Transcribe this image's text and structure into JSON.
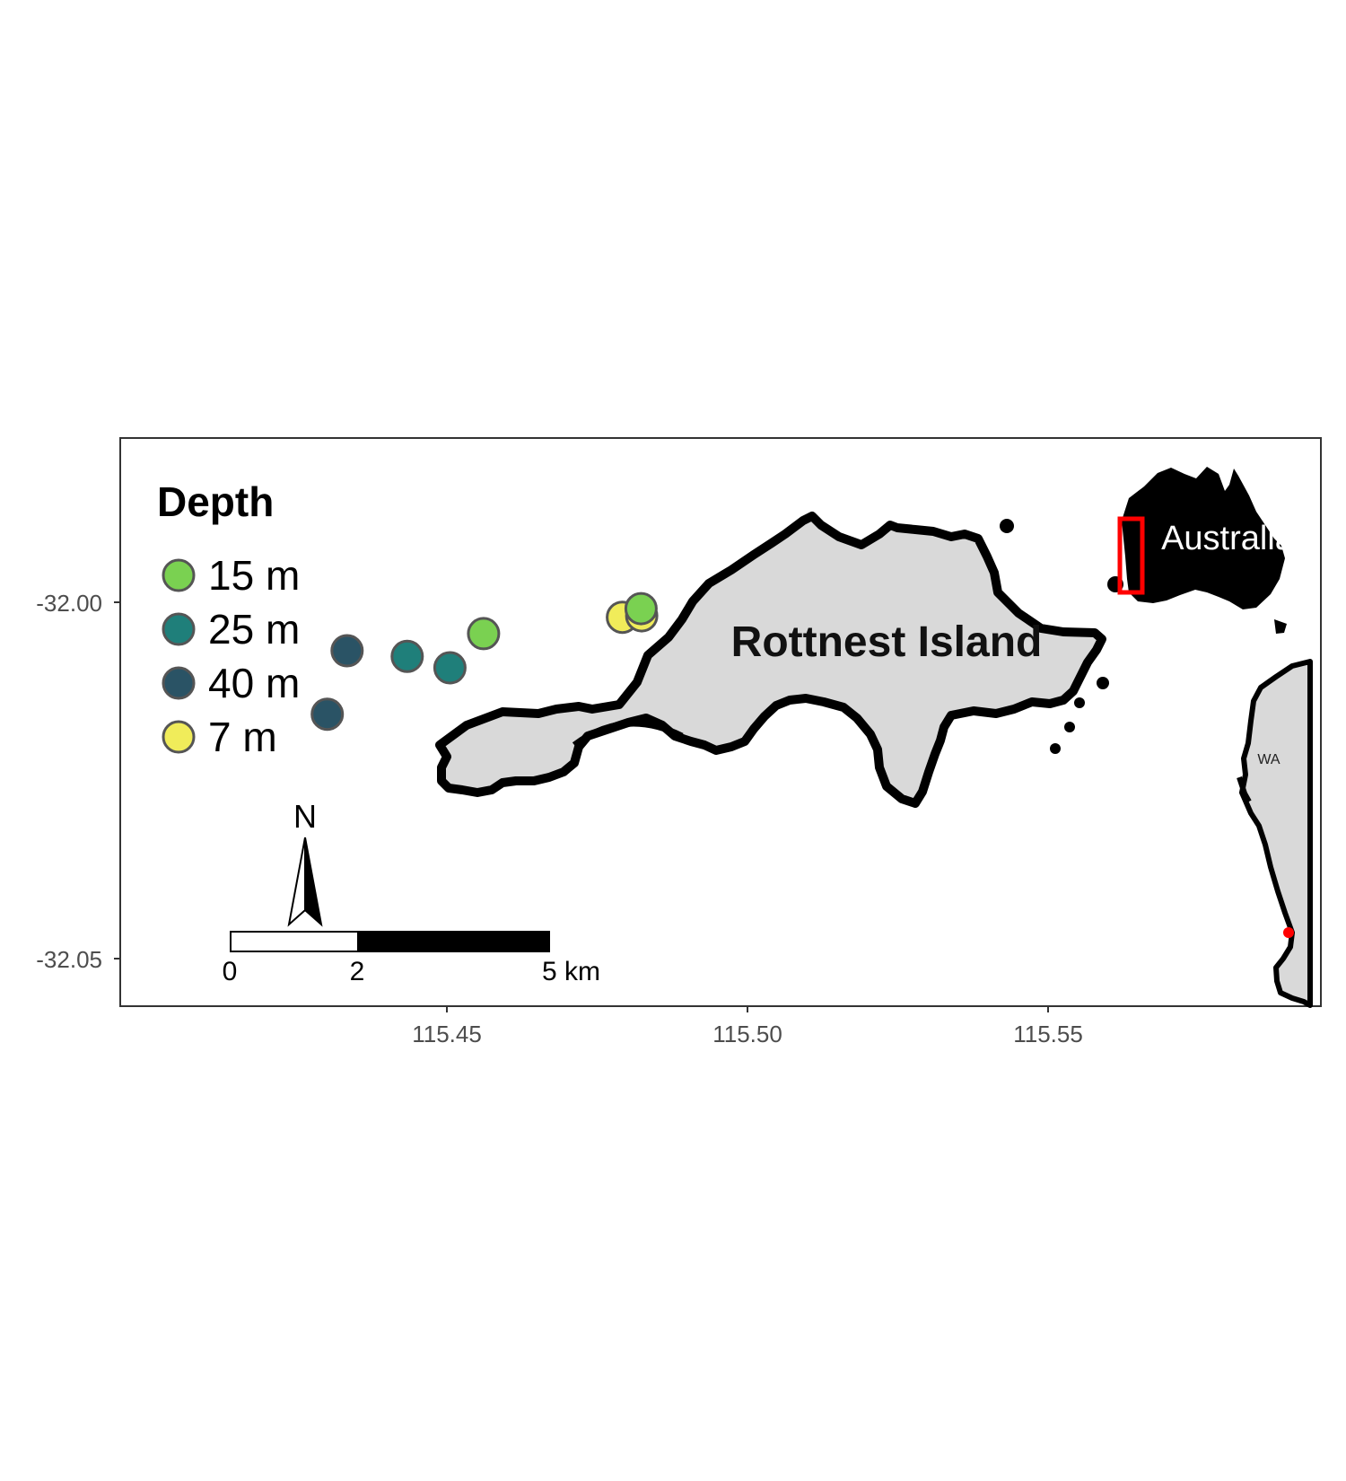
{
  "map": {
    "axes": {
      "x_ticks": [
        "115.45",
        "115.50",
        "115.55"
      ],
      "y_ticks": [
        "-32.00",
        "-32.05"
      ]
    },
    "island_label": "Rottnest Island",
    "legend": {
      "title": "Depth",
      "items": [
        {
          "label": "15 m",
          "color": "#7ad151"
        },
        {
          "label": "25 m",
          "color": "#1f7f7a"
        },
        {
          "label": "40 m",
          "color": "#2a5365"
        },
        {
          "label": "7 m",
          "color": "#f0ec5a"
        }
      ]
    },
    "scale_bar": {
      "labels": [
        "0",
        "2",
        "5 km"
      ]
    },
    "north_arrow": {
      "label": "N"
    },
    "inset": {
      "australia_label": "Australia",
      "state_label": "WA",
      "highlight_color": "#ff0000"
    },
    "sites": [
      {
        "depth": "40 m",
        "lon": 115.4334,
        "lat": -32.0068
      },
      {
        "depth": "40 m",
        "lon": 115.4301,
        "lat": -32.0157
      },
      {
        "depth": "25 m",
        "lon": 115.4434,
        "lat": -32.0076
      },
      {
        "depth": "25 m",
        "lon": 115.4505,
        "lat": -32.0092
      },
      {
        "depth": "15 m",
        "lon": 115.4561,
        "lat": -32.0044
      },
      {
        "depth": "7 m",
        "lon": 115.4792,
        "lat": -32.0021
      },
      {
        "depth": "7 m",
        "lon": 115.4824,
        "lat": -32.0019
      },
      {
        "depth": "15 m",
        "lon": 115.4823,
        "lat": -32.0009
      }
    ]
  }
}
